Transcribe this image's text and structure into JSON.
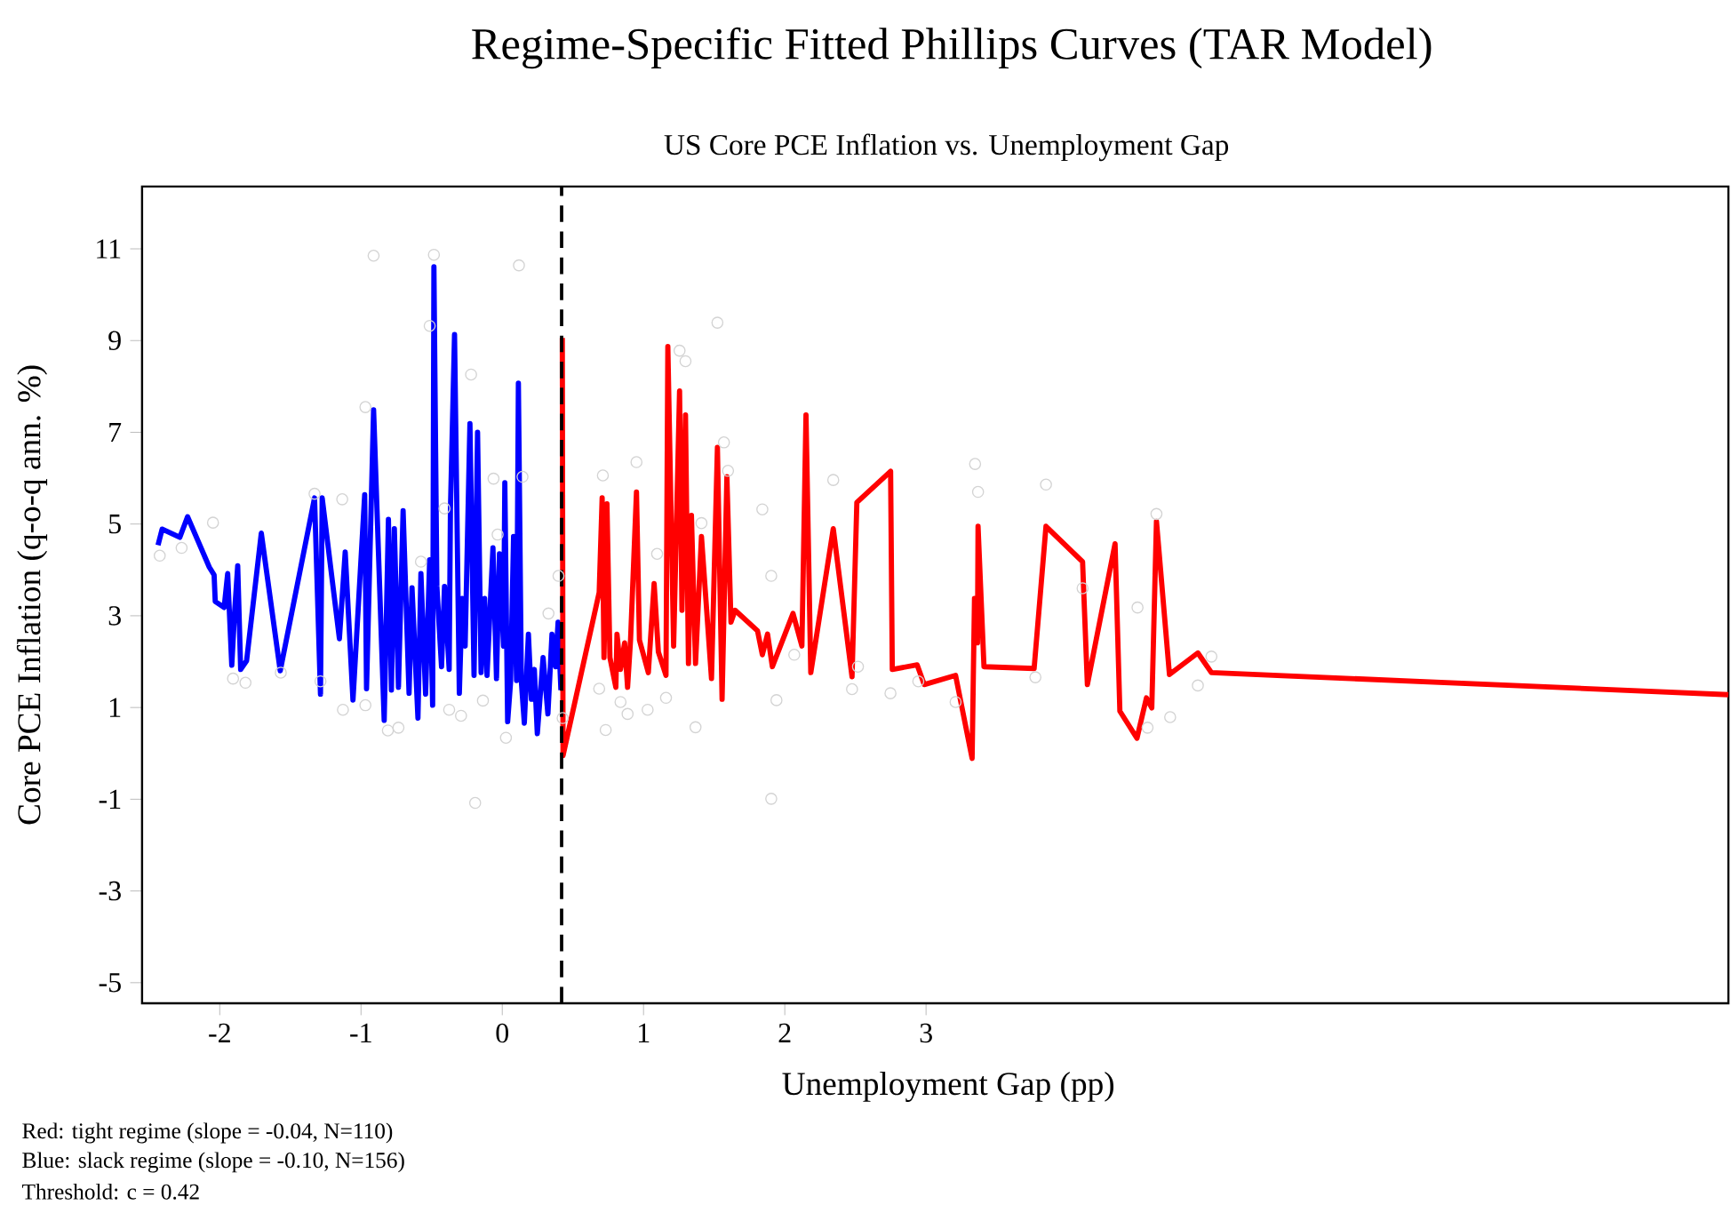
{
  "chart_data": {
    "type": "line",
    "title": "Regime-Specific Fitted Phillips Curves (TAR Model)",
    "subtitle": "US Core PCE Inflation vs. Unemployment Gap",
    "xlabel": "Unemployment Gap (pp)",
    "ylabel": "Core PCE Inflation (q-o-q ann. %)",
    "xlim": [
      -2.55,
      8.68
    ],
    "ylim": [
      -5.45,
      12.36
    ],
    "xticks": [
      -2,
      -1,
      0,
      1,
      2,
      3
    ],
    "yticks": [
      -5,
      -3,
      -1,
      1,
      3,
      5,
      7,
      9,
      11
    ],
    "series": [
      {
        "type": "scatter",
        "marker": "circle",
        "color": "#d3d3d3",
        "x": [
          -2.425,
          -2.27,
          -2.048,
          -1.906,
          -1.818,
          -1.568,
          -1.329,
          -1.287,
          -1.133,
          -1.128,
          -0.969,
          -0.969,
          -0.911,
          -0.81,
          -0.735,
          -0.576,
          -0.514,
          -0.484,
          -0.409,
          -0.376,
          -0.292,
          -0.221,
          -0.192,
          -0.137,
          -0.062,
          -0.033,
          0.026,
          0.118,
          0.143,
          0.327,
          0.398,
          0.427,
          0.712,
          0.95,
          0.732,
          0.686,
          0.837,
          0.887,
          1.029,
          1.096,
          1.255,
          1.297,
          1.523,
          1.569,
          1.598,
          1.41,
          1.368,
          1.159,
          1.841,
          1.904,
          1.941,
          1.904,
          2.067,
          2.343,
          2.476,
          2.518,
          2.748,
          2.945,
          3.209,
          3.347,
          3.368,
          3.774,
          3.849,
          4.108,
          4.497,
          4.568,
          4.631,
          4.728,
          4.924,
          5.02
        ],
        "values": [
          4.31,
          4.48,
          5.03,
          1.63,
          1.54,
          1.76,
          5.66,
          1.57,
          5.54,
          0.95,
          1.05,
          7.55,
          10.85,
          0.5,
          0.56,
          4.18,
          9.32,
          10.87,
          5.34,
          0.95,
          0.82,
          8.26,
          -1.08,
          1.15,
          5.99,
          4.77,
          0.34,
          10.64,
          6.03,
          3.05,
          3.87,
          0.77,
          6.06,
          6.35,
          0.51,
          1.41,
          1.12,
          0.86,
          0.95,
          4.35,
          8.78,
          8.55,
          9.39,
          6.78,
          6.16,
          5.02,
          0.57,
          1.21,
          5.32,
          3.87,
          1.16,
          -0.99,
          2.15,
          5.96,
          1.4,
          1.89,
          1.31,
          1.57,
          1.12,
          6.31,
          5.7,
          1.66,
          5.86,
          3.6,
          3.18,
          0.56,
          5.22,
          0.79,
          1.48,
          2.11
        ]
      },
      {
        "marker": "none",
        "line_style": "solid",
        "color": "#0000ff",
        "x": [
          -2.437,
          -2.408,
          -2.283,
          -2.228,
          -2.074,
          -2.04,
          -2.032,
          -1.969,
          -1.944,
          -1.915,
          -1.894,
          -1.873,
          -1.852,
          -1.81,
          -1.706,
          -1.572,
          -1.329,
          -1.287,
          -1.275,
          -1.153,
          -1.112,
          -1.057,
          -0.974,
          -0.961,
          -0.911,
          -0.836,
          -0.806,
          -0.785,
          -0.764,
          -0.735,
          -0.702,
          -0.66,
          -0.639,
          -0.597,
          -0.576,
          -0.543,
          -0.514,
          -0.493,
          -0.484,
          -0.463,
          -0.43,
          -0.409,
          -0.376,
          -0.367,
          -0.338,
          -0.304,
          -0.284,
          -0.263,
          -0.229,
          -0.2,
          -0.175,
          -0.15,
          -0.125,
          -0.108,
          -0.083,
          -0.066,
          -0.041,
          -0.02,
          0.009,
          0.018,
          0.038,
          0.059,
          0.08,
          0.101,
          0.114,
          0.135,
          0.156,
          0.185,
          0.206,
          0.227,
          0.248,
          0.289,
          0.323,
          0.352,
          0.377,
          0.395,
          0.415
        ],
        "values": [
          4.54,
          4.89,
          4.71,
          5.16,
          4.06,
          3.89,
          3.31,
          3.18,
          3.92,
          1.92,
          3.12,
          4.09,
          1.83,
          2.02,
          4.8,
          1.8,
          5.57,
          1.29,
          5.57,
          2.5,
          4.39,
          1.16,
          5.64,
          1.41,
          7.49,
          0.72,
          5.1,
          1.38,
          4.9,
          1.44,
          5.29,
          1.31,
          3.61,
          0.77,
          3.92,
          1.29,
          4.22,
          1.05,
          10.61,
          3.64,
          1.89,
          3.64,
          1.83,
          5.32,
          9.13,
          1.31,
          3.38,
          2.34,
          7.19,
          1.7,
          7.0,
          1.76,
          3.38,
          1.7,
          3.38,
          4.48,
          1.63,
          4.35,
          2.34,
          5.9,
          0.69,
          1.57,
          4.73,
          1.59,
          8.07,
          1.57,
          0.66,
          2.6,
          1.18,
          1.83,
          0.43,
          2.09,
          0.86,
          2.6,
          1.89,
          2.86,
          1.38
        ]
      },
      {
        "marker": "none",
        "line_style": "solid",
        "color": "#ff0000",
        "x": [
          0.425,
          0.43,
          0.686,
          0.707,
          0.72,
          0.741,
          0.762,
          0.804,
          0.812,
          0.837,
          0.866,
          0.887,
          0.908,
          0.95,
          0.971,
          1.034,
          1.075,
          1.105,
          1.159,
          1.172,
          1.213,
          1.255,
          1.272,
          1.297,
          1.318,
          1.339,
          1.368,
          1.41,
          1.481,
          1.523,
          1.556,
          1.59,
          1.619,
          1.648,
          1.807,
          1.841,
          1.878,
          1.912,
          2.058,
          2.121,
          2.15,
          2.184,
          2.343,
          2.476,
          2.51,
          2.749,
          2.761,
          2.937,
          2.987,
          3.209,
          3.326,
          3.343,
          3.364,
          3.368,
          3.41,
          3.765,
          3.849,
          4.108,
          4.142,
          4.338,
          4.372,
          4.493,
          4.56,
          4.598,
          4.631,
          4.723,
          4.924,
          5.02,
          8.68
        ],
        "values": [
          9.06,
          -0.05,
          3.51,
          5.57,
          2.09,
          5.44,
          2.09,
          1.44,
          2.6,
          1.83,
          2.41,
          1.44,
          2.47,
          5.7,
          2.47,
          1.76,
          3.7,
          2.21,
          1.7,
          8.87,
          2.34,
          7.9,
          3.12,
          7.38,
          1.96,
          5.19,
          1.96,
          4.73,
          1.63,
          6.67,
          1.18,
          6.03,
          2.86,
          3.12,
          2.67,
          2.15,
          2.6,
          1.89,
          3.05,
          2.34,
          7.38,
          1.76,
          4.9,
          1.67,
          5.47,
          6.15,
          1.83,
          1.93,
          1.5,
          1.7,
          -0.11,
          3.38,
          2.41,
          4.95,
          1.89,
          1.85,
          4.95,
          4.18,
          1.5,
          4.57,
          0.92,
          0.33,
          1.21,
          0.99,
          5.06,
          1.72,
          2.19,
          1.76,
          1.28
        ]
      }
    ],
    "ref_lines": [
      {
        "axis": "x",
        "value": 0.42,
        "color": "#000000",
        "line_style": "dashed"
      }
    ],
    "annotations": [
      "Red: tight regime (slope = -0.04, N=110)",
      "Blue: slack regime (slope = -0.10, N=156)",
      "Threshold: c =  0.42"
    ]
  }
}
